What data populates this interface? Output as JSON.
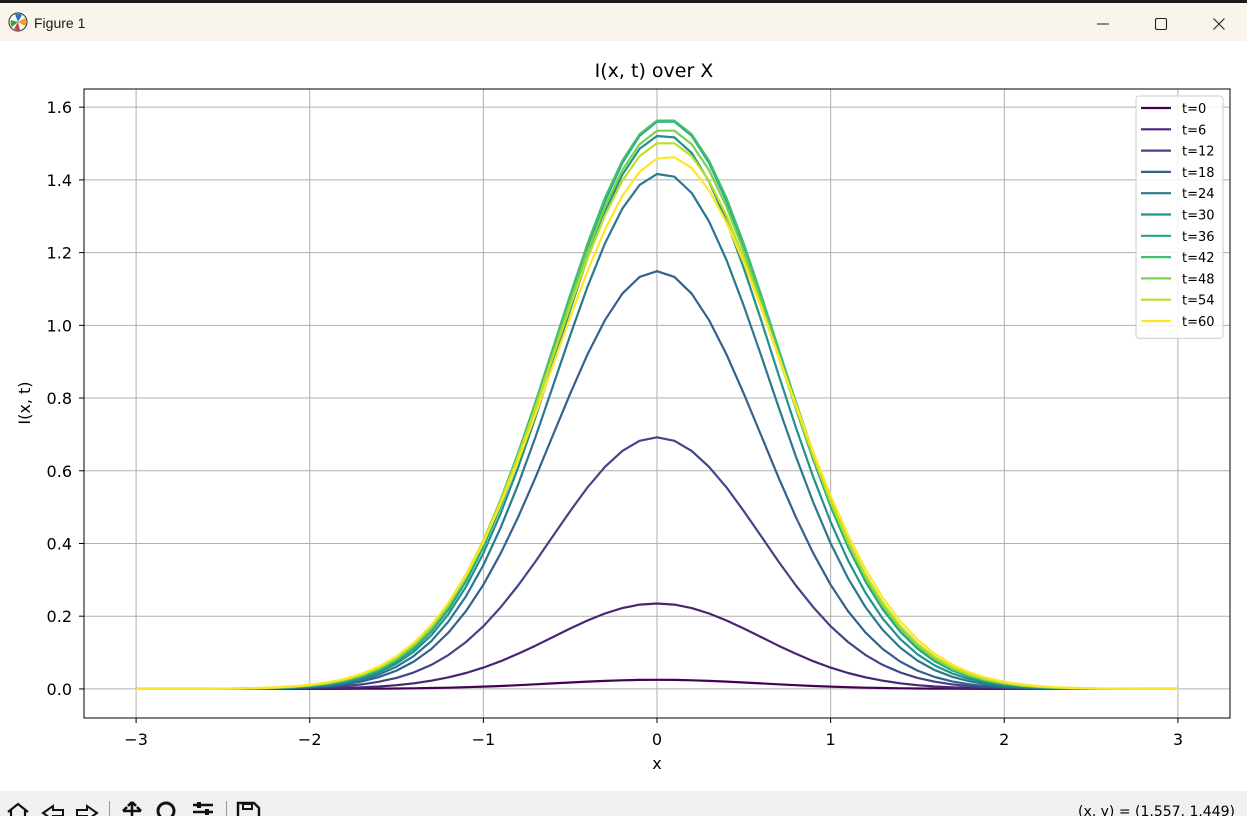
{
  "window": {
    "title": "Figure 1"
  },
  "toolbar": {
    "coords": "(x, y) = (1.557, 1.449)"
  },
  "icons": {
    "app": "matplotlib-icon",
    "minimize": "minimize-icon",
    "maximize": "maximize-icon",
    "close": "close-icon",
    "home": "home-icon",
    "back": "back-arrow-icon",
    "forward": "forward-arrow-icon",
    "pan": "pan-icon",
    "zoom": "zoom-icon",
    "configure": "configure-subplots-icon",
    "save": "save-icon"
  },
  "chart_data": {
    "type": "line",
    "title": "I(x, t) over X",
    "xlabel": "x",
    "ylabel": "I(x, t)",
    "xlim": [
      -3.3,
      3.3
    ],
    "ylim": [
      -0.08,
      1.65
    ],
    "xticks": [
      -3,
      -2,
      -1,
      0,
      1,
      2,
      3
    ],
    "xtick_labels": [
      "−3",
      "−2",
      "−1",
      "0",
      "1",
      "2",
      "3"
    ],
    "yticks": [
      0.0,
      0.2,
      0.4,
      0.6,
      0.8,
      1.0,
      1.2,
      1.4,
      1.6
    ],
    "ytick_labels": [
      "0.0",
      "0.2",
      "0.4",
      "0.6",
      "0.8",
      "1.0",
      "1.2",
      "1.4",
      "1.6"
    ],
    "grid": true,
    "legend_position": "top-right",
    "x_range": [
      -3,
      3
    ],
    "series": [
      {
        "name": "t=0",
        "color": "#440154",
        "peak": 0.025,
        "center": 0.0,
        "width": 0.6
      },
      {
        "name": "t=6",
        "color": "#482475",
        "peak": 0.235,
        "center": 0.0,
        "width": 0.6
      },
      {
        "name": "t=12",
        "color": "#414487",
        "peak": 0.692,
        "center": 0.0,
        "width": 0.6
      },
      {
        "name": "t=18",
        "color": "#355f8d",
        "peak": 1.149,
        "center": 0.0,
        "width": 0.6
      },
      {
        "name": "t=24",
        "color": "#2a788e",
        "peak": 1.418,
        "center": 0.03,
        "width": 0.61
      },
      {
        "name": "t=30",
        "color": "#21918c",
        "peak": 1.524,
        "center": 0.04,
        "width": 0.62
      },
      {
        "name": "t=36",
        "color": "#22a884",
        "peak": 1.565,
        "center": 0.05,
        "width": 0.63
      },
      {
        "name": "t=42",
        "color": "#44bf70",
        "peak": 1.568,
        "center": 0.05,
        "width": 0.64
      },
      {
        "name": "t=48",
        "color": "#7ad151",
        "peak": 1.54,
        "center": 0.05,
        "width": 0.64
      },
      {
        "name": "t=54",
        "color": "#bddf26",
        "peak": 1.505,
        "center": 0.05,
        "width": 0.65
      },
      {
        "name": "t=60",
        "color": "#fde725",
        "peak": 1.465,
        "center": 0.06,
        "width": 0.66
      }
    ]
  }
}
